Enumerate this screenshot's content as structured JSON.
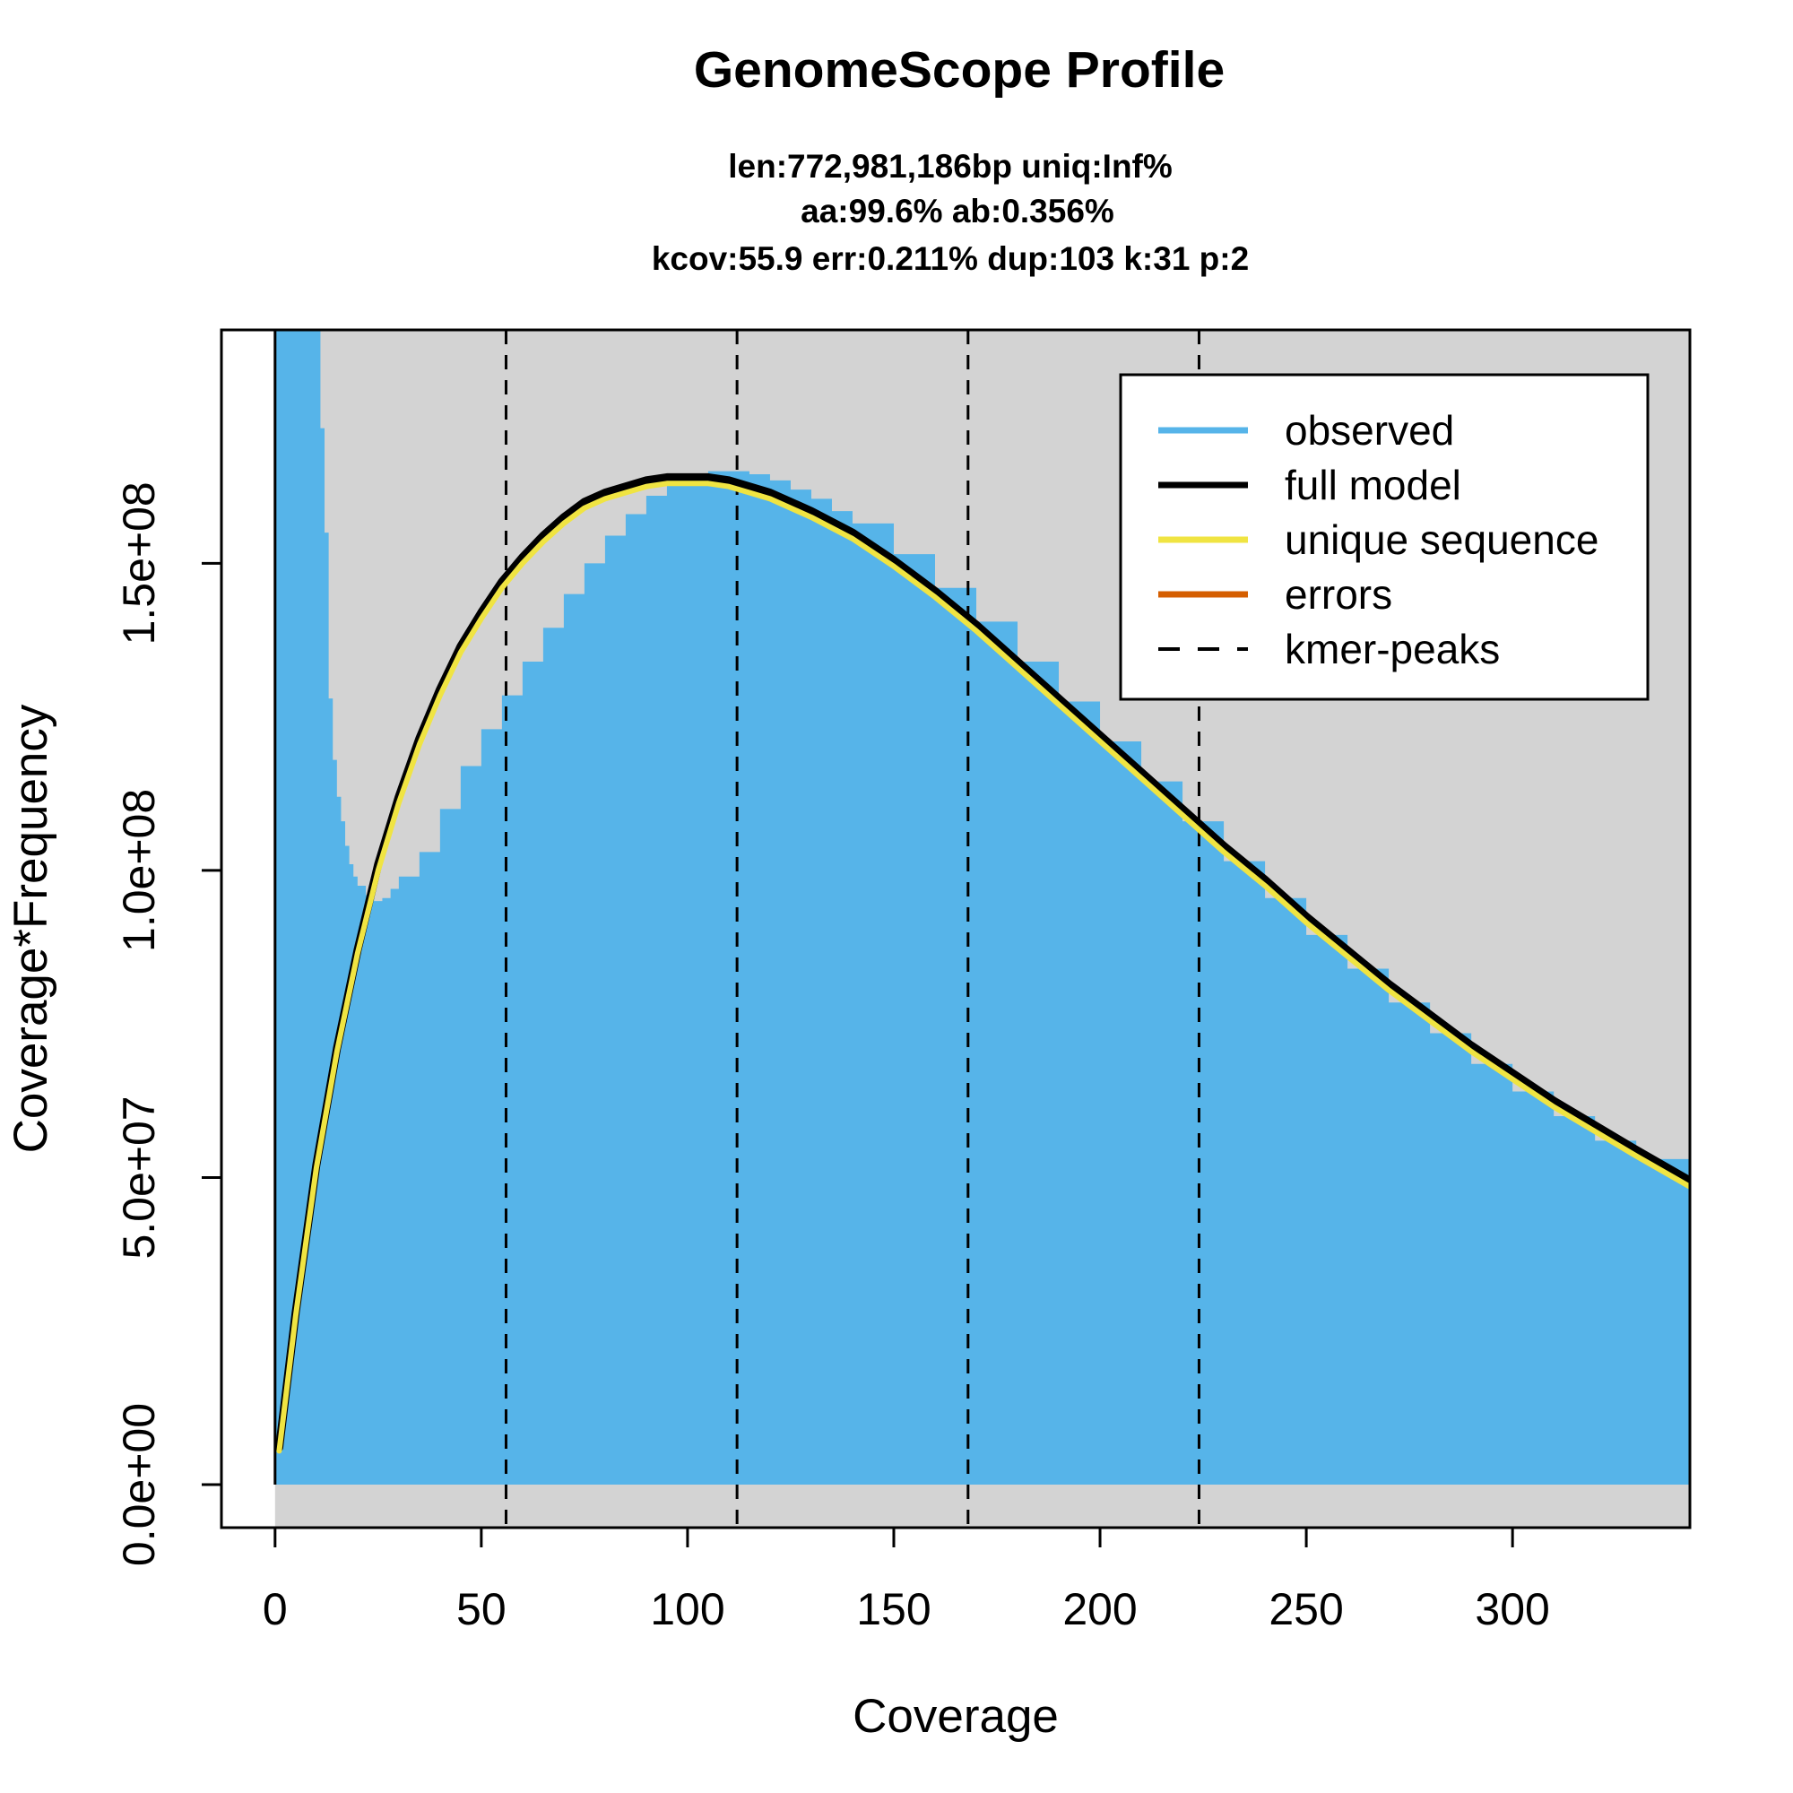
{
  "chart_data": {
    "type": "area",
    "title": "GenomeScope Profile",
    "subtitle_lines": [
      "len:772,981,186bp uniq:Inf%",
      "aa:99.6% ab:0.356%",
      "kcov:55.9 err:0.211%  dup:103  k:31 p:2"
    ],
    "xlabel": "Coverage",
    "ylabel": "Coverage*Frequency",
    "xlim": [
      -13,
      343
    ],
    "ylim": [
      -7000000,
      188000000
    ],
    "x_ticks": [
      0,
      50,
      100,
      150,
      200,
      250,
      300
    ],
    "x_tick_labels": [
      "0",
      "50",
      "100",
      "150",
      "200",
      "250",
      "300"
    ],
    "y_ticks": [
      0,
      50000000,
      100000000,
      150000000
    ],
    "y_tick_labels": [
      "0.0e+00",
      "5.0e+07",
      "1.0e+08",
      "1.5e+08"
    ],
    "grid": false,
    "background_color": "#d3d3d3",
    "kmer_peaks": [
      56,
      112,
      168,
      224
    ],
    "legend": {
      "position": "top-right",
      "entries": [
        {
          "label": "observed",
          "color": "#56b4e9",
          "style": "solid"
        },
        {
          "label": "full model",
          "color": "#000000",
          "style": "solid"
        },
        {
          "label": "unique sequence",
          "color": "#f0e442",
          "style": "solid"
        },
        {
          "label": "errors",
          "color": "#d55e00",
          "style": "solid"
        },
        {
          "label": "kmer-peaks",
          "color": "#000000",
          "style": "dashed"
        }
      ]
    },
    "series": [
      {
        "name": "observed",
        "kind": "histogram",
        "color": "#56b4e9",
        "x": [
          0,
          8,
          9,
          10,
          11,
          12,
          13,
          14,
          15,
          16,
          17,
          18,
          19,
          20,
          22,
          24,
          26,
          28,
          30,
          35,
          40,
          45,
          50,
          55,
          60,
          65,
          70,
          75,
          80,
          85,
          90,
          95,
          100,
          105,
          110,
          115,
          120,
          125,
          130,
          135,
          140,
          150,
          160,
          170,
          180,
          190,
          200,
          210,
          220,
          230,
          240,
          250,
          260,
          270,
          280,
          290,
          300,
          310,
          320,
          330,
          343
        ],
        "y": [
          188000000,
          188000000,
          188000000,
          188000000,
          172000000,
          155000000,
          128000000,
          118000000,
          112000000,
          108000000,
          104000000,
          101000000,
          99000000,
          97500000,
          96000000,
          95000000,
          95500000,
          97000000,
          99000000,
          103000000,
          110000000,
          117000000,
          123000000,
          128500000,
          134000000,
          139500000,
          145000000,
          150000000,
          154500000,
          158000000,
          161000000,
          163000000,
          164500000,
          165000000,
          165000000,
          164500000,
          163500000,
          162000000,
          160500000,
          158500000,
          156500000,
          151500000,
          146000000,
          140500000,
          134000000,
          127500000,
          121000000,
          114500000,
          108000000,
          101500000,
          95500000,
          89500000,
          84000000,
          78500000,
          73500000,
          68500000,
          64000000,
          60000000,
          56000000,
          53000000,
          49000000
        ]
      },
      {
        "name": "full model",
        "kind": "line",
        "color": "#000000",
        "x": [
          1,
          5,
          10,
          15,
          20,
          25,
          30,
          35,
          40,
          45,
          50,
          55,
          60,
          65,
          70,
          75,
          80,
          85,
          90,
          95,
          100,
          105,
          110,
          115,
          120,
          130,
          140,
          150,
          160,
          170,
          180,
          190,
          200,
          210,
          220,
          230,
          240,
          250,
          260,
          270,
          280,
          290,
          300,
          310,
          320,
          330,
          343
        ],
        "y": [
          6000000,
          28000000,
          52000000,
          71000000,
          87000000,
          101000000,
          112000000,
          121500000,
          129500000,
          136500000,
          142000000,
          147000000,
          151000000,
          154500000,
          157500000,
          160000000,
          161500000,
          162500000,
          163500000,
          164000000,
          164000000,
          164000000,
          163500000,
          162500000,
          161500000,
          158500000,
          155000000,
          150500000,
          145500000,
          140000000,
          134000000,
          128000000,
          122000000,
          116000000,
          110000000,
          104000000,
          98500000,
          92500000,
          87000000,
          81500000,
          76500000,
          71500000,
          67000000,
          62500000,
          58500000,
          54500000,
          49500000
        ]
      },
      {
        "name": "unique sequence",
        "kind": "line",
        "color": "#f0e442",
        "x": [
          1,
          5,
          10,
          15,
          20,
          25,
          30,
          35,
          40,
          45,
          50,
          55,
          60,
          65,
          70,
          75,
          80,
          85,
          90,
          95,
          100,
          105,
          110,
          115,
          120,
          130,
          140,
          150,
          160,
          170,
          180,
          190,
          200,
          210,
          220,
          230,
          240,
          250,
          260,
          270,
          280,
          290,
          300,
          310,
          320,
          330,
          343
        ],
        "y": [
          5500000,
          27500000,
          51500000,
          70500000,
          86500000,
          100000000,
          111000000,
          120500000,
          128500000,
          135500000,
          141000000,
          146000000,
          150000000,
          153500000,
          156500000,
          159000000,
          160500000,
          161500000,
          162500000,
          163000000,
          163000000,
          163000000,
          162500000,
          161500000,
          160500000,
          157500000,
          154000000,
          149500000,
          144500000,
          139000000,
          133000000,
          127000000,
          121000000,
          115000000,
          109000000,
          103000000,
          97500000,
          91500000,
          86000000,
          80500000,
          75500000,
          70500000,
          66000000,
          61500000,
          57500000,
          53500000,
          48500000
        ]
      },
      {
        "name": "errors",
        "kind": "line",
        "color": "#d55e00",
        "x": [],
        "y": []
      }
    ]
  }
}
